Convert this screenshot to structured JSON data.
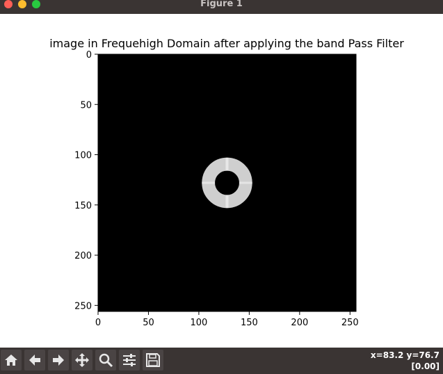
{
  "window": {
    "title": "Figure 1"
  },
  "chart_data": {
    "type": "heatmap",
    "title": "image in Frequehigh Domain after applying the band Pass Filter",
    "xlabel": "",
    "ylabel": "",
    "xlim": [
      0,
      256
    ],
    "ylim": [
      256,
      0
    ],
    "x_ticks": [
      0,
      50,
      100,
      150,
      200,
      250
    ],
    "y_ticks": [
      0,
      50,
      100,
      150,
      200,
      250
    ],
    "x_tick_labels": [
      "0",
      "50",
      "100",
      "150",
      "200",
      "250"
    ],
    "y_tick_labels": [
      "0",
      "50",
      "100",
      "150",
      "200",
      "250"
    ],
    "colormap": "gray",
    "background_value": "black",
    "band": {
      "center": [
        128,
        128
      ],
      "inner_radius": 12,
      "outer_radius": 25
    }
  },
  "toolbar": {
    "buttons": [
      {
        "name": "home-button",
        "icon": "home-icon"
      },
      {
        "name": "back-button",
        "icon": "arrow-left-icon"
      },
      {
        "name": "forward-button",
        "icon": "arrow-right-icon"
      },
      {
        "name": "pan-button",
        "icon": "move-icon"
      },
      {
        "name": "zoom-button",
        "icon": "search-icon"
      },
      {
        "name": "configure-subplots-button",
        "icon": "sliders-icon"
      },
      {
        "name": "save-button",
        "icon": "floppy-icon"
      }
    ],
    "coords_line1": "x=83.2 y=76.7",
    "coords_line2": "[0.00]"
  }
}
